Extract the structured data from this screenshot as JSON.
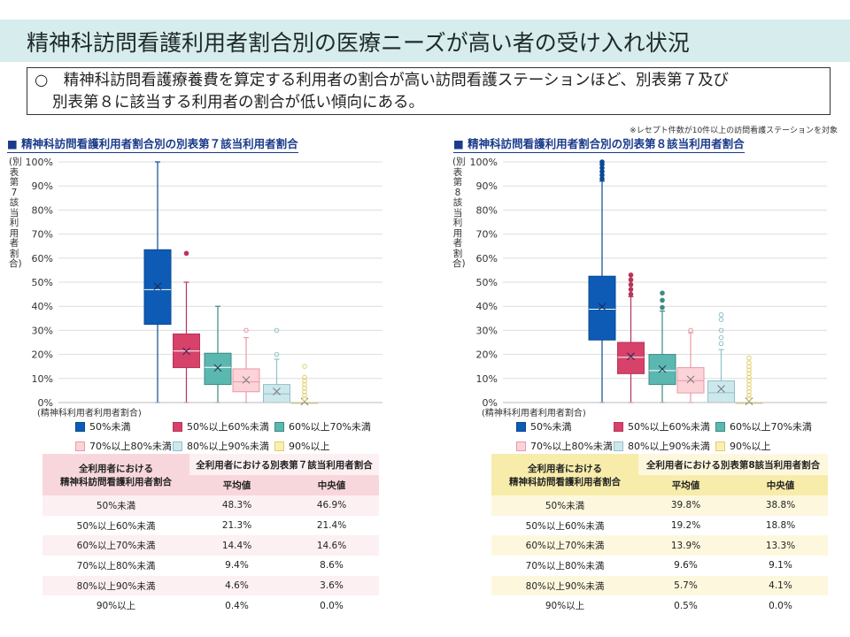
{
  "page": {
    "title": "精神科訪問看護利用者割合別の医療ニーズが高い者の受け入れ状況",
    "summary_line1": "○　精神科訪問看護療養費を算定する利用者の割合が高い訪問看護ステーションほど、別表第７及び",
    "summary_line2": "別表第８に該当する利用者の割合が低い傾向にある。",
    "note": "※レセプト件数が10件以上の訪問看護ステーションを対象"
  },
  "colors": {
    "c1": "#0d5bb5",
    "c2": "#d6426a",
    "c3": "#5bb8b0",
    "c4": "#fbd3d8",
    "c5": "#cde8ec",
    "c6": "#faf0b4",
    "pink_header": "#f8d7dc",
    "yellow_header": "#f7ecaa"
  },
  "chart_data": [
    {
      "type": "box",
      "title": "■ 精神科訪問看護利用者割合別の別表第７該当利用者割合",
      "ylabel": "(別表第7該当利用者割合)",
      "xlabel": "(精神科利用者利用者割合)",
      "ylim": [
        0,
        100
      ],
      "yticks": [
        "0%",
        "10%",
        "20%",
        "30%",
        "40%",
        "50%",
        "60%",
        "70%",
        "80%",
        "90%",
        "100%"
      ],
      "categories": [
        "50%未満",
        "50%以上60%未満",
        "60%以上70%未満",
        "70%以上80%未満",
        "80%以上90%未満",
        "90%以上"
      ],
      "series": [
        {
          "name": "50%未満",
          "min": 0,
          "q1": 32.5,
          "median": 46.9,
          "q3": 63.5,
          "max": 100,
          "mean": 48.3,
          "outliers": []
        },
        {
          "name": "50%以上60%未満",
          "min": 0,
          "q1": 14.5,
          "median": 21.4,
          "q3": 28.5,
          "max": 50,
          "mean": 21.3,
          "outliers": [
            62
          ]
        },
        {
          "name": "60%以上70%未満",
          "min": 0,
          "q1": 7.5,
          "median": 14.6,
          "q3": 20.5,
          "max": 40,
          "mean": 14.4,
          "outliers": []
        },
        {
          "name": "70%以上80%未満",
          "min": 0,
          "q1": 4.5,
          "median": 8.6,
          "q3": 14,
          "max": 27,
          "mean": 9.4,
          "outliers": [
            30
          ]
        },
        {
          "name": "80%以上90%未満",
          "min": 0,
          "q1": 0,
          "median": 3.6,
          "q3": 7.5,
          "max": 18,
          "mean": 4.6,
          "outliers": [
            20,
            30
          ]
        },
        {
          "name": "90%以上",
          "min": 0,
          "q1": 0,
          "median": 0,
          "q3": 0,
          "max": 0,
          "mean": 0.4,
          "outliers": [
            1.5,
            3,
            4.5,
            6,
            7.5,
            9,
            10.5,
            15
          ]
        }
      ]
    },
    {
      "type": "box",
      "title": "■ 精神科訪問看護利用者割合別の別表第８該当利用者割合",
      "ylabel": "(別表第8該当利用者割合)",
      "xlabel": "(精神科利用者利用者割合)",
      "ylim": [
        0,
        100
      ],
      "yticks": [
        "0%",
        "10%",
        "20%",
        "30%",
        "40%",
        "50%",
        "60%",
        "70%",
        "80%",
        "90%",
        "100%"
      ],
      "categories": [
        "50%未満",
        "50%以上60%未満",
        "60%以上70%未満",
        "70%以上80%未満",
        "80%以上90%未満",
        "90%以上"
      ],
      "series": [
        {
          "name": "50%未満",
          "min": 0,
          "q1": 26,
          "median": 38.8,
          "q3": 52.5,
          "max": 92,
          "mean": 39.8,
          "outliers": [
            93,
            94.5,
            96,
            97.5,
            99,
            100
          ]
        },
        {
          "name": "50%以上60%未満",
          "min": 0,
          "q1": 12,
          "median": 18.8,
          "q3": 25,
          "max": 44,
          "mean": 19.2,
          "outliers": [
            45,
            47,
            49,
            51,
            53
          ]
        },
        {
          "name": "60%以上70%未満",
          "min": 0,
          "q1": 7.5,
          "median": 13.3,
          "q3": 20,
          "max": 38,
          "mean": 13.9,
          "outliers": [
            39.5,
            42.5,
            45.5
          ]
        },
        {
          "name": "70%以上80%未満",
          "min": 0,
          "q1": 4,
          "median": 9.1,
          "q3": 14.5,
          "max": 29,
          "mean": 9.6,
          "outliers": [
            30
          ]
        },
        {
          "name": "80%以上90%未満",
          "min": 0,
          "q1": 0,
          "median": 4.1,
          "q3": 9,
          "max": 22,
          "mean": 5.7,
          "outliers": [
            24.5,
            27,
            30,
            34.5,
            36.5
          ]
        },
        {
          "name": "90%以上",
          "min": 0,
          "q1": 0,
          "median": 0,
          "q3": 0,
          "max": 0,
          "mean": 0.5,
          "outliers": [
            1.5,
            3,
            4.5,
            6,
            7.5,
            9,
            10.5,
            12,
            13.5,
            15,
            16.5,
            18.5
          ]
        }
      ]
    }
  ],
  "table7": {
    "h_left": "全利用者における",
    "h_left2": "精神科訪問看護利用者割合",
    "h_right": "全利用者における別表第７該当利用者割合",
    "h_mean": "平均値",
    "h_median": "中央値",
    "rows": [
      {
        "label": "50%未満",
        "mean": "48.3%",
        "median": "46.9%"
      },
      {
        "label": "50%以上60%未満",
        "mean": "21.3%",
        "median": "21.4%"
      },
      {
        "label": "60%以上70%未満",
        "mean": "14.4%",
        "median": "14.6%"
      },
      {
        "label": "70%以上80%未満",
        "mean": "9.4%",
        "median": "8.6%"
      },
      {
        "label": "80%以上90%未満",
        "mean": "4.6%",
        "median": "3.6%"
      },
      {
        "label": "90%以上",
        "mean": "0.4%",
        "median": "0.0%"
      }
    ]
  },
  "table8": {
    "h_left": "全利用者における",
    "h_left2": "精神科訪問看護利用者割合",
    "h_right": "全利用者における別表第8該当利用者割合",
    "h_mean": "平均値",
    "h_median": "中央値",
    "rows": [
      {
        "label": "50%未満",
        "mean": "39.8%",
        "median": "38.8%"
      },
      {
        "label": "50%以上60%未満",
        "mean": "19.2%",
        "median": "18.8%"
      },
      {
        "label": "60%以上70%未満",
        "mean": "13.9%",
        "median": "13.3%"
      },
      {
        "label": "70%以上80%未満",
        "mean": "9.6%",
        "median": "9.1%"
      },
      {
        "label": "80%以上90%未満",
        "mean": "5.7%",
        "median": "4.1%"
      },
      {
        "label": "90%以上",
        "mean": "0.5%",
        "median": "0.0%"
      }
    ]
  }
}
